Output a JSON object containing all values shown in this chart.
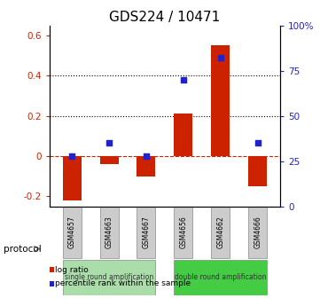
{
  "title": "GDS224 / 10471",
  "samples": [
    "GSM4657",
    "GSM4663",
    "GSM4667",
    "GSM4656",
    "GSM4662",
    "GSM4666"
  ],
  "log_ratio": [
    -0.22,
    -0.04,
    -0.1,
    0.21,
    0.55,
    -0.15
  ],
  "percentile": [
    28,
    35,
    28,
    70,
    82,
    35
  ],
  "ylim_left": [
    -0.25,
    0.65
  ],
  "ylim_right": [
    0,
    100
  ],
  "yticks_left": [
    -0.2,
    0.0,
    0.2,
    0.4,
    0.6
  ],
  "yticks_right": [
    0,
    25,
    50,
    75,
    100
  ],
  "ytick_labels_left": [
    "-0.2",
    "0",
    "0.2",
    "0.4",
    "0.6"
  ],
  "ytick_labels_right": [
    "0",
    "25",
    "50",
    "75",
    "100%"
  ],
  "hlines": [
    0.2,
    0.4
  ],
  "bar_color": "#cc2200",
  "dot_color": "#2222cc",
  "group0_color": "#aaddaa",
  "group1_color": "#44cc44",
  "group0_label": "single round amplification",
  "group1_label": "double round amplification",
  "protocol_label": "protocol",
  "legend_log_ratio": "log ratio",
  "legend_percentile": "percentile rank within the sample",
  "bar_width": 0.5,
  "title_fontsize": 11,
  "tick_fontsize": 7.5,
  "label_fontsize": 7.5
}
